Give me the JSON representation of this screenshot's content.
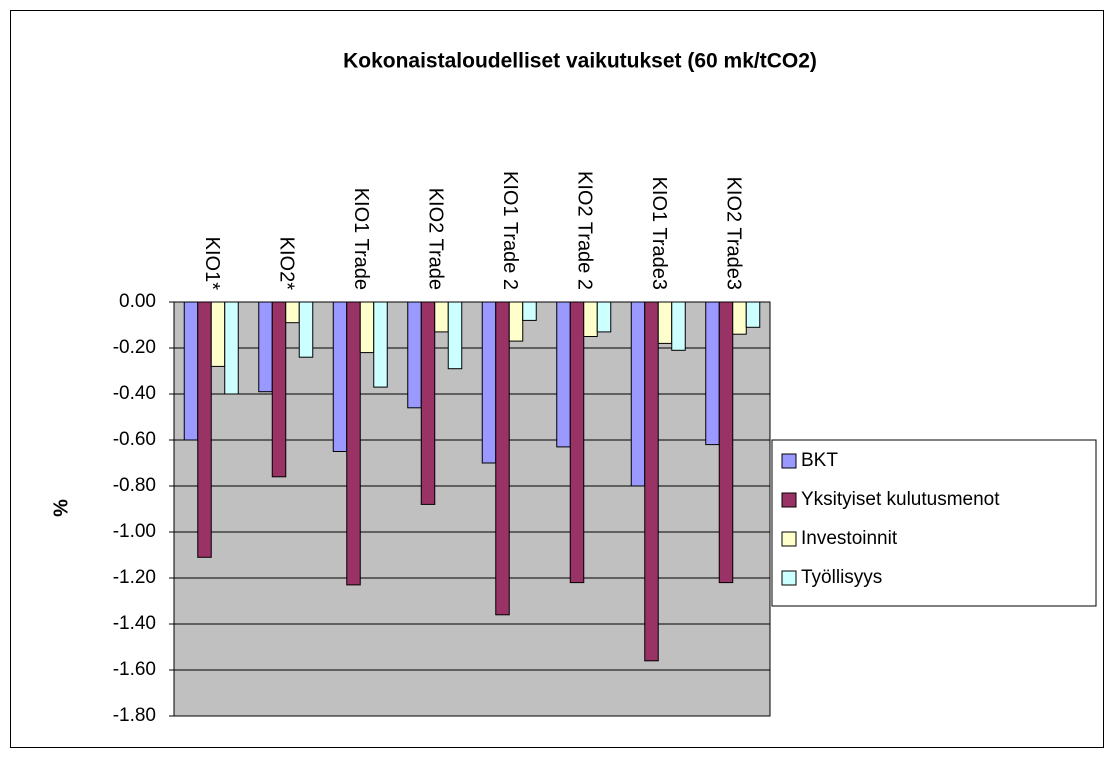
{
  "chart_data": {
    "type": "bar",
    "title": "Kokonaistaloudelliset vaikutukset (60 mk/tCO2)",
    "y_label": "%",
    "categories": [
      "KIO1*",
      "KIO2*",
      "KIO1 Trade",
      "KIO2 Trade",
      "KIO1 Trade 2",
      "KIO2 Trade 2",
      "KIO1 Trade3",
      "KIO2 Trade3"
    ],
    "series": [
      {
        "name": "BKT",
        "color": "#9999ff",
        "values": [
          -0.6,
          -0.39,
          -0.65,
          -0.46,
          -0.7,
          -0.63,
          -0.8,
          -0.62
        ]
      },
      {
        "name": "Yksityiset kulutusmenot",
        "color": "#993366",
        "values": [
          -1.11,
          -0.76,
          -1.23,
          -0.88,
          -1.36,
          -1.22,
          -1.56,
          -1.22
        ]
      },
      {
        "name": "Investoinnit",
        "color": "#ffffcc",
        "values": [
          -0.28,
          -0.09,
          -0.22,
          -0.13,
          -0.17,
          -0.15,
          -0.18,
          -0.14
        ]
      },
      {
        "name": "Työllisyys",
        "color": "#ccffff",
        "values": [
          -0.4,
          -0.24,
          -0.37,
          -0.29,
          -0.08,
          -0.13,
          -0.21,
          -0.11
        ]
      }
    ],
    "ylim": [
      -1.8,
      0
    ],
    "yticks": [
      {
        "value": 0,
        "label": "0.00"
      },
      {
        "value": -0.2,
        "label": "-0.20"
      },
      {
        "value": -0.4,
        "label": "-0.40"
      },
      {
        "value": -0.6,
        "label": "-0.60"
      },
      {
        "value": -0.8,
        "label": "-0.80"
      },
      {
        "value": -1.0,
        "label": "-1.00"
      },
      {
        "value": -1.2,
        "label": "-1.20"
      },
      {
        "value": -1.4,
        "label": "-1.40"
      },
      {
        "value": -1.6,
        "label": "-1.60"
      },
      {
        "value": -1.8,
        "label": "-1.80"
      }
    ],
    "grid": true,
    "legend": "right",
    "plot_background": "#c0c0c0"
  }
}
